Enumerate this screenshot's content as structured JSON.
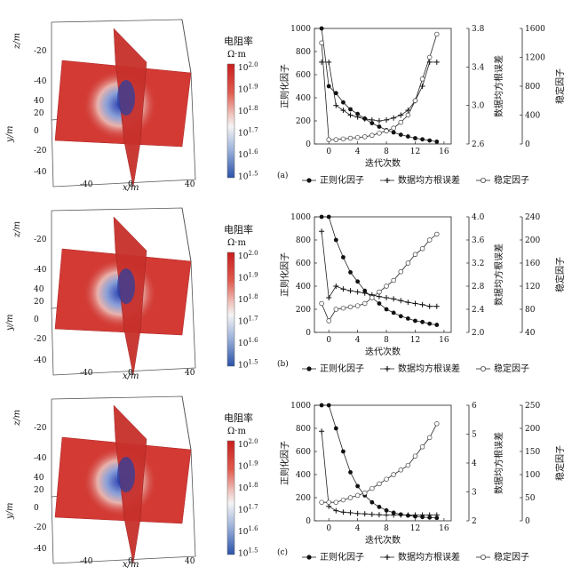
{
  "colorbar": {
    "title": "电阻率",
    "unit": "Ω·m",
    "base": "10",
    "exponents": [
      "2.0",
      "1.9",
      "1.8",
      "1.7",
      "1.6",
      "1.5"
    ]
  },
  "volume": {
    "z_label": "z/m",
    "y_label": "y/m",
    "x_label": "x/m",
    "z_ticks": [
      "-20",
      "-40"
    ],
    "y_ticks": [
      "40",
      "20",
      "0",
      "-20",
      "-40"
    ],
    "x_ticks": [
      "-40",
      "0",
      "40"
    ]
  },
  "legend": {
    "reg": "正则化因子",
    "rms": "数据均方根误差",
    "stab": "稳定因子"
  },
  "panels": [
    {
      "label": "(a)"
    },
    {
      "label": "(b)"
    },
    {
      "label": "(c)"
    }
  ],
  "chart_data": [
    {
      "type": "line",
      "title": "(a)",
      "xlabel": "迭代次数",
      "ylabel_left": "正则化因子",
      "ylabel_mid": "数据均方根误差",
      "ylabel_right": "稳定因子",
      "xlim": [
        -2,
        17
      ],
      "xticks": [
        "0",
        "4",
        "8",
        "12",
        "16"
      ],
      "left_axis": {
        "lim": [
          0,
          1000
        ],
        "ticks": [
          "0",
          "200",
          "400",
          "600",
          "800",
          "1000"
        ]
      },
      "mid_axis": {
        "lim": [
          2.6,
          3.8
        ],
        "ticks": [
          "2.6",
          "3.0",
          "3.4",
          "3.8"
        ]
      },
      "right_axis": {
        "lim": [
          0,
          1600
        ],
        "ticks": [
          "0",
          "400",
          "800",
          "1200",
          "1600"
        ]
      },
      "x": [
        -1,
        0,
        1,
        2,
        3,
        4,
        5,
        6,
        7,
        8,
        9,
        10,
        11,
        12,
        13,
        14,
        15
      ],
      "series": [
        {
          "name": "正则化因子",
          "axis": "left",
          "marker": "filled-circle",
          "values": [
            1000,
            500,
            440,
            360,
            300,
            260,
            220,
            180,
            150,
            120,
            100,
            80,
            65,
            50,
            40,
            30,
            20
          ]
        },
        {
          "name": "数据均方根误差",
          "axis": "mid",
          "marker": "plus",
          "values": [
            3.45,
            3.45,
            3.0,
            2.95,
            2.9,
            2.88,
            2.86,
            2.85,
            2.84,
            2.85,
            2.87,
            2.9,
            2.95,
            3.05,
            3.2,
            3.45,
            3.45
          ]
        },
        {
          "name": "稳定因子",
          "axis": "right",
          "marker": "open-circle",
          "values": [
            1400,
            60,
            60,
            70,
            80,
            90,
            100,
            120,
            150,
            180,
            220,
            300,
            400,
            600,
            900,
            1200,
            1520
          ]
        }
      ]
    },
    {
      "type": "line",
      "title": "(b)",
      "xlabel": "迭代次数",
      "ylabel_left": "正则化因子",
      "ylabel_mid": "数据均方根误差",
      "ylabel_right": "稳定因子",
      "xlim": [
        -2,
        17
      ],
      "xticks": [
        "0",
        "4",
        "8",
        "12",
        "16"
      ],
      "left_axis": {
        "lim": [
          0,
          1000
        ],
        "ticks": [
          "0",
          "200",
          "400",
          "600",
          "800",
          "1000"
        ]
      },
      "mid_axis": {
        "lim": [
          2.0,
          4.0
        ],
        "ticks": [
          "2.0",
          "2.4",
          "2.8",
          "3.2",
          "3.6",
          "4.0"
        ]
      },
      "right_axis": {
        "lim": [
          40,
          240
        ],
        "ticks": [
          "40",
          "80",
          "120",
          "160",
          "200",
          "240"
        ]
      },
      "x": [
        -1,
        0,
        1,
        2,
        3,
        4,
        5,
        6,
        7,
        8,
        9,
        10,
        11,
        12,
        13,
        14,
        15
      ],
      "series": [
        {
          "name": "正则化因子",
          "axis": "left",
          "marker": "filled-circle",
          "values": [
            1000,
            1000,
            800,
            650,
            520,
            440,
            360,
            300,
            250,
            200,
            170,
            140,
            120,
            100,
            90,
            75,
            65
          ]
        },
        {
          "name": "数据均方根误差",
          "axis": "mid",
          "marker": "plus",
          "values": [
            3.75,
            2.6,
            2.8,
            2.75,
            2.72,
            2.7,
            2.68,
            2.65,
            2.62,
            2.6,
            2.58,
            2.55,
            2.52,
            2.5,
            2.48,
            2.45,
            2.45
          ]
        },
        {
          "name": "稳定因子",
          "axis": "right",
          "marker": "open-circle",
          "values": [
            90,
            60,
            80,
            82,
            84,
            86,
            90,
            100,
            110,
            120,
            130,
            145,
            160,
            175,
            185,
            200,
            210
          ]
        }
      ]
    },
    {
      "type": "line",
      "title": "(c)",
      "xlabel": "迭代次数",
      "ylabel_left": "正则化因子",
      "ylabel_mid": "数据均方根误差",
      "ylabel_right": "稳定因子",
      "xlim": [
        -2,
        17
      ],
      "xticks": [
        "0",
        "4",
        "8",
        "12",
        "16"
      ],
      "left_axis": {
        "lim": [
          0,
          1000
        ],
        "ticks": [
          "0",
          "200",
          "400",
          "600",
          "800",
          "1000"
        ]
      },
      "mid_axis": {
        "lim": [
          2,
          6
        ],
        "ticks": [
          "2",
          "3",
          "4",
          "5",
          "6"
        ]
      },
      "right_axis": {
        "lim": [
          0,
          250
        ],
        "ticks": [
          "0",
          "50",
          "100",
          "150",
          "200",
          "250"
        ]
      },
      "x": [
        -1,
        0,
        1,
        2,
        3,
        4,
        5,
        6,
        7,
        8,
        9,
        10,
        11,
        12,
        13,
        14,
        15
      ],
      "series": [
        {
          "name": "正则化因子",
          "axis": "left",
          "marker": "filled-circle",
          "values": [
            1000,
            1000,
            800,
            600,
            420,
            300,
            220,
            160,
            120,
            90,
            70,
            55,
            45,
            38,
            32,
            28,
            25
          ]
        },
        {
          "name": "数据均方根误差",
          "axis": "mid",
          "marker": "plus",
          "values": [
            5.1,
            2.5,
            2.35,
            2.3,
            2.28,
            2.25,
            2.24,
            2.22,
            2.21,
            2.2,
            2.2,
            2.2,
            2.2,
            2.2,
            2.2,
            2.2,
            2.2
          ]
        },
        {
          "name": "稳定因子",
          "axis": "right",
          "marker": "open-circle",
          "values": [
            40,
            40,
            40,
            45,
            50,
            55,
            60,
            70,
            80,
            90,
            100,
            110,
            120,
            140,
            160,
            180,
            210
          ]
        }
      ]
    }
  ]
}
